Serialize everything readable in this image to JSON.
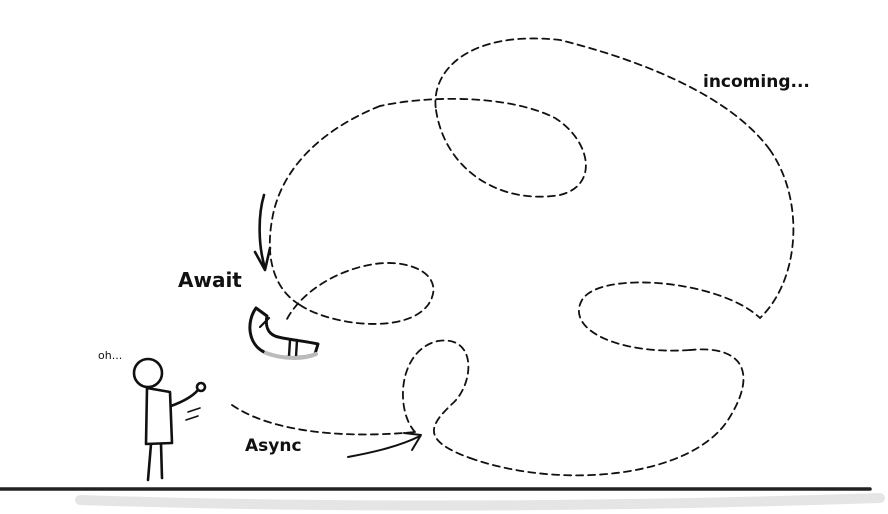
{
  "labels": {
    "await": "Await",
    "async": "Async",
    "incoming": "incoming...",
    "oh": "oh..."
  },
  "colors": {
    "ink": "#111111",
    "boomerang_fill": "#ffffff",
    "ground": "#222222"
  },
  "icons": {
    "boomerang": "boomerang-icon",
    "stick_figure": "stick-figure-icon"
  }
}
